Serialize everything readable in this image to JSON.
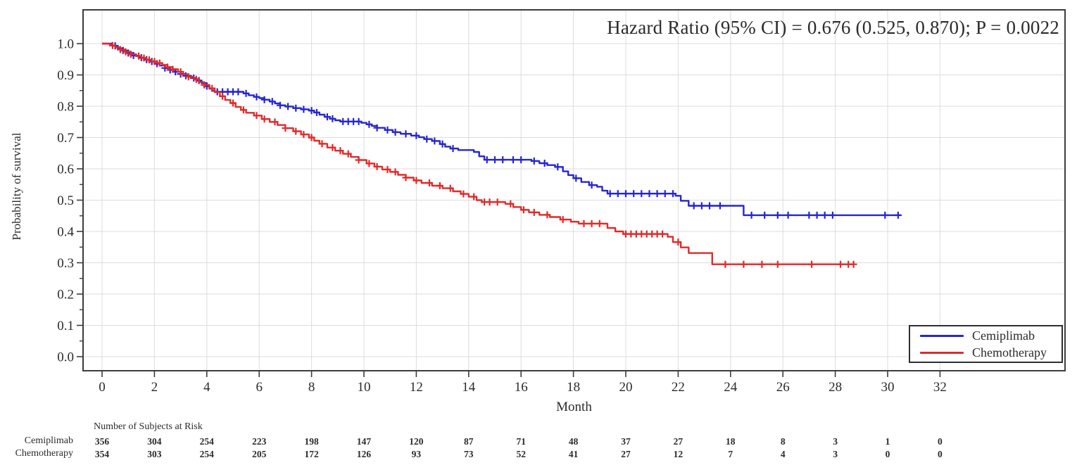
{
  "title": "Hazard Ratio (95% CI) = 0.676 (0.525, 0.870); P = 0.0022",
  "colors": {
    "cemiplimab": "#2626cf",
    "chemotherapy": "#e02a2a",
    "grid": "#dcdcdc",
    "frame": "#3c3c3c",
    "tick_text": "#2b2b2b"
  },
  "chart_data": {
    "type": "line",
    "subtype": "kaplan-meier-step",
    "title": "Hazard Ratio (95% CI) = 0.676 (0.525, 0.870); P = 0.0022",
    "xlabel": "Month",
    "ylabel": "Probability of survival",
    "xlim": [
      0,
      32
    ],
    "ylim": [
      0.0,
      1.0
    ],
    "x_tick_step": 2,
    "y_tick_step": 0.1,
    "y_minor_tick_step": 0.05,
    "grid": true,
    "legend_position": "inside-bottom-right",
    "series": [
      {
        "name": "Cemiplimab",
        "color": "#2626cf",
        "steps": [
          [
            0,
            1.0
          ],
          [
            0.4,
            0.993
          ],
          [
            0.6,
            0.985
          ],
          [
            0.8,
            0.978
          ],
          [
            1.0,
            0.97
          ],
          [
            1.2,
            0.962
          ],
          [
            1.4,
            0.955
          ],
          [
            1.6,
            0.949
          ],
          [
            1.8,
            0.943
          ],
          [
            2.0,
            0.936
          ],
          [
            2.2,
            0.93
          ],
          [
            2.4,
            0.922
          ],
          [
            2.6,
            0.916
          ],
          [
            2.8,
            0.91
          ],
          [
            3.0,
            0.903
          ],
          [
            3.2,
            0.897
          ],
          [
            3.4,
            0.89
          ],
          [
            3.6,
            0.882
          ],
          [
            3.8,
            0.874
          ],
          [
            4.0,
            0.864
          ],
          [
            4.1,
            0.856
          ],
          [
            4.2,
            0.85
          ],
          [
            4.3,
            0.846
          ],
          [
            5.4,
            0.841
          ],
          [
            5.6,
            0.835
          ],
          [
            5.8,
            0.83
          ],
          [
            6.0,
            0.826
          ],
          [
            6.2,
            0.821
          ],
          [
            6.4,
            0.815
          ],
          [
            6.6,
            0.809
          ],
          [
            6.8,
            0.803
          ],
          [
            7.0,
            0.799
          ],
          [
            7.3,
            0.794
          ],
          [
            7.6,
            0.79
          ],
          [
            7.9,
            0.786
          ],
          [
            8.1,
            0.78
          ],
          [
            8.3,
            0.773
          ],
          [
            8.5,
            0.766
          ],
          [
            8.7,
            0.76
          ],
          [
            8.9,
            0.755
          ],
          [
            9.1,
            0.751
          ],
          [
            9.9,
            0.747
          ],
          [
            10.1,
            0.742
          ],
          [
            10.3,
            0.737
          ],
          [
            10.5,
            0.731
          ],
          [
            10.8,
            0.724
          ],
          [
            11.1,
            0.717
          ],
          [
            11.4,
            0.712
          ],
          [
            11.8,
            0.706
          ],
          [
            12.1,
            0.701
          ],
          [
            12.3,
            0.695
          ],
          [
            12.6,
            0.689
          ],
          [
            12.9,
            0.679
          ],
          [
            13.1,
            0.671
          ],
          [
            13.3,
            0.665
          ],
          [
            13.6,
            0.66
          ],
          [
            14.2,
            0.654
          ],
          [
            14.4,
            0.64
          ],
          [
            14.6,
            0.629
          ],
          [
            16.4,
            0.625
          ],
          [
            16.7,
            0.618
          ],
          [
            17.0,
            0.612
          ],
          [
            17.3,
            0.606
          ],
          [
            17.6,
            0.592
          ],
          [
            17.8,
            0.58
          ],
          [
            18.0,
            0.57
          ],
          [
            18.3,
            0.558
          ],
          [
            18.6,
            0.548
          ],
          [
            18.9,
            0.543
          ],
          [
            19.1,
            0.53
          ],
          [
            19.3,
            0.521
          ],
          [
            21.9,
            0.514
          ],
          [
            22.1,
            0.498
          ],
          [
            22.4,
            0.482
          ],
          [
            24.5,
            0.452
          ],
          [
            30.5,
            0.452
          ]
        ],
        "censor_times": [
          0.5,
          0.8,
          1.0,
          1.2,
          1.5,
          1.7,
          1.9,
          2.1,
          2.4,
          2.6,
          2.8,
          3.0,
          3.2,
          3.5,
          3.7,
          4.0,
          4.4,
          4.6,
          4.8,
          5.0,
          5.2,
          5.5,
          5.9,
          6.2,
          6.5,
          6.8,
          7.1,
          7.4,
          7.7,
          8.0,
          8.2,
          8.6,
          8.8,
          9.2,
          9.4,
          9.6,
          9.8,
          10.2,
          10.5,
          10.9,
          11.2,
          11.6,
          12.0,
          12.4,
          12.7,
          13.0,
          13.4,
          14.7,
          15.0,
          15.3,
          15.7,
          16.0,
          16.5,
          16.9,
          17.4,
          18.1,
          18.7,
          19.4,
          19.7,
          20.0,
          20.3,
          20.6,
          20.9,
          21.2,
          21.5,
          21.8,
          22.6,
          22.9,
          23.2,
          23.6,
          24.8,
          25.3,
          25.8,
          26.2,
          27.0,
          27.3,
          27.6,
          27.9,
          29.9,
          30.4
        ],
        "risk_values": [
          356,
          304,
          254,
          223,
          198,
          147,
          120,
          87,
          71,
          48,
          37,
          27,
          18,
          8,
          3,
          1,
          0
        ]
      },
      {
        "name": "Chemotherapy",
        "color": "#e02a2a",
        "steps": [
          [
            0,
            1.0
          ],
          [
            0.3,
            0.994
          ],
          [
            0.5,
            0.988
          ],
          [
            0.7,
            0.981
          ],
          [
            0.9,
            0.974
          ],
          [
            1.1,
            0.966
          ],
          [
            1.3,
            0.96
          ],
          [
            1.5,
            0.954
          ],
          [
            1.7,
            0.948
          ],
          [
            1.9,
            0.943
          ],
          [
            2.1,
            0.938
          ],
          [
            2.3,
            0.932
          ],
          [
            2.5,
            0.925
          ],
          [
            2.7,
            0.918
          ],
          [
            2.9,
            0.91
          ],
          [
            3.1,
            0.902
          ],
          [
            3.3,
            0.894
          ],
          [
            3.5,
            0.886
          ],
          [
            3.7,
            0.877
          ],
          [
            3.9,
            0.868
          ],
          [
            4.1,
            0.857
          ],
          [
            4.3,
            0.845
          ],
          [
            4.5,
            0.832
          ],
          [
            4.7,
            0.82
          ],
          [
            4.9,
            0.81
          ],
          [
            5.1,
            0.798
          ],
          [
            5.3,
            0.788
          ],
          [
            5.5,
            0.779
          ],
          [
            5.8,
            0.77
          ],
          [
            6.1,
            0.759
          ],
          [
            6.4,
            0.75
          ],
          [
            6.7,
            0.74
          ],
          [
            7.0,
            0.73
          ],
          [
            7.3,
            0.72
          ],
          [
            7.6,
            0.71
          ],
          [
            7.9,
            0.7
          ],
          [
            8.1,
            0.69
          ],
          [
            8.3,
            0.68
          ],
          [
            8.6,
            0.668
          ],
          [
            8.9,
            0.658
          ],
          [
            9.2,
            0.648
          ],
          [
            9.5,
            0.638
          ],
          [
            9.8,
            0.628
          ],
          [
            10.1,
            0.617
          ],
          [
            10.4,
            0.607
          ],
          [
            10.7,
            0.598
          ],
          [
            11.0,
            0.59
          ],
          [
            11.3,
            0.581
          ],
          [
            11.6,
            0.572
          ],
          [
            11.9,
            0.563
          ],
          [
            12.2,
            0.555
          ],
          [
            12.6,
            0.546
          ],
          [
            13.0,
            0.538
          ],
          [
            13.4,
            0.528
          ],
          [
            13.7,
            0.52
          ],
          [
            14.0,
            0.511
          ],
          [
            14.3,
            0.5
          ],
          [
            14.5,
            0.494
          ],
          [
            15.4,
            0.488
          ],
          [
            15.7,
            0.478
          ],
          [
            16.0,
            0.469
          ],
          [
            16.3,
            0.461
          ],
          [
            16.7,
            0.453
          ],
          [
            17.1,
            0.446
          ],
          [
            17.5,
            0.438
          ],
          [
            17.9,
            0.431
          ],
          [
            18.2,
            0.425
          ],
          [
            19.3,
            0.411
          ],
          [
            19.6,
            0.4
          ],
          [
            19.9,
            0.392
          ],
          [
            21.6,
            0.383
          ],
          [
            21.8,
            0.366
          ],
          [
            22.1,
            0.349
          ],
          [
            22.4,
            0.331
          ],
          [
            23.3,
            0.295
          ],
          [
            28.7,
            0.295
          ]
        ],
        "censor_times": [
          0.4,
          0.7,
          0.9,
          1.1,
          1.4,
          1.6,
          1.8,
          2.0,
          2.2,
          2.5,
          2.7,
          3.0,
          3.3,
          3.6,
          3.9,
          4.2,
          4.6,
          5.0,
          5.4,
          5.9,
          6.2,
          6.6,
          7.0,
          7.4,
          7.7,
          8.0,
          8.4,
          8.8,
          9.1,
          9.4,
          9.8,
          10.2,
          10.5,
          10.9,
          11.2,
          11.6,
          12.0,
          12.5,
          12.9,
          13.3,
          13.8,
          14.2,
          14.6,
          14.8,
          15.1,
          15.6,
          16.1,
          16.5,
          17.0,
          17.6,
          18.4,
          18.7,
          19.0,
          20.0,
          20.2,
          20.4,
          20.6,
          20.8,
          21.0,
          21.2,
          21.4,
          22.0,
          23.8,
          24.5,
          25.2,
          25.8,
          27.1,
          28.2,
          28.5,
          28.7
        ],
        "risk_values": [
          354,
          303,
          254,
          205,
          172,
          126,
          93,
          73,
          52,
          41,
          27,
          12,
          7,
          4,
          3,
          0,
          0
        ]
      }
    ],
    "risk_table": {
      "header": "Number of Subjects at Risk",
      "timepoints": [
        0,
        2,
        4,
        6,
        8,
        10,
        12,
        14,
        16,
        18,
        20,
        22,
        24,
        26,
        28,
        30,
        32
      ]
    }
  }
}
